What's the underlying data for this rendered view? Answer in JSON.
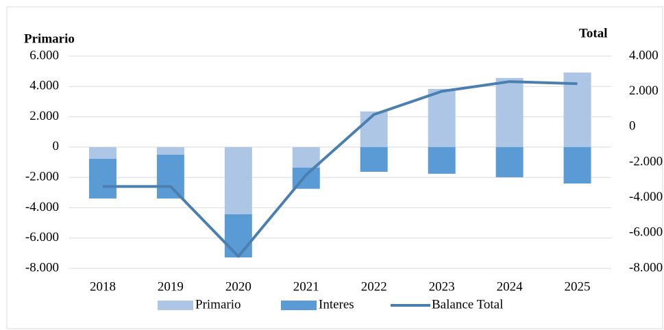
{
  "chart_data": {
    "type": "bar-line",
    "ylabel": "Primario",
    "y2label": "Total",
    "categories": [
      "2018",
      "2019",
      "2020",
      "2021",
      "2022",
      "2023",
      "2024",
      "2025"
    ],
    "series": [
      {
        "name": "Primario",
        "color": "#adc6e6",
        "kind": "bar",
        "values": [
          -770,
          -500,
          -4430,
          -1350,
          2350,
          3840,
          4560,
          4920
        ]
      },
      {
        "name": "Interes",
        "color": "#5b9bd5",
        "kind": "bar",
        "values": [
          -2620,
          -2890,
          -2850,
          -1400,
          -1630,
          -1760,
          -1990,
          -2400
        ]
      },
      {
        "name": "Balance Total",
        "color": "#4a7fb0",
        "kind": "line",
        "axis": "y2",
        "values": [
          -3370,
          -3370,
          -7320,
          -2710,
          700,
          2010,
          2560,
          2440
        ]
      }
    ],
    "ylim": [
      -8000,
      6000
    ],
    "yticks": [
      {
        "value": -8000,
        "label": "-8.000"
      },
      {
        "value": -6000,
        "label": "-6.000"
      },
      {
        "value": -4000,
        "label": "-4.000"
      },
      {
        "value": -2000,
        "label": "-2.000"
      },
      0,
      {
        "value": 2000,
        "label": "2.000"
      },
      {
        "value": 4000,
        "label": "4.000"
      },
      {
        "value": 6000,
        "label": "6.000"
      }
    ],
    "y2lim": [
      -8000,
      4000
    ],
    "y2ticks": [
      {
        "value": -8000,
        "label": "-8.000"
      },
      {
        "value": -6000,
        "label": "-6.000"
      },
      {
        "value": -4000,
        "label": "-4.000"
      },
      {
        "value": -2000,
        "label": "-2.000"
      },
      0,
      {
        "value": 2000,
        "label": "2.000"
      },
      {
        "value": 4000,
        "label": "4.000"
      }
    ],
    "grid": true,
    "legend": "bottom"
  }
}
